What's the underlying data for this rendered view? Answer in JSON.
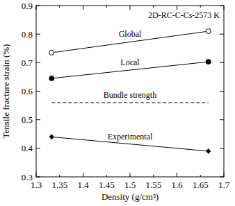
{
  "chart_data": {
    "type": "line",
    "annotation": "2D-RC-C-Cs-2573 K",
    "x_label": "Density (g/cm³)",
    "y_label": "Tensile fracture strain (%)",
    "xlim": [
      1.3,
      1.7
    ],
    "xticks": [
      1.3,
      1.35,
      1.4,
      1.45,
      1.5,
      1.55,
      1.6,
      1.65,
      1.7
    ],
    "ylim": [
      0.3,
      0.9
    ],
    "yticks": [
      0.3,
      0.4,
      0.5,
      0.6,
      0.7,
      0.8,
      0.9
    ],
    "grid": false,
    "series": [
      {
        "name": "Global",
        "color": "#000000",
        "marker": "open-circle",
        "line_style": "solid",
        "x": [
          1.333,
          1.667
        ],
        "values": [
          0.735,
          0.81
        ]
      },
      {
        "name": "Local",
        "color": "#000000",
        "marker": "circle",
        "line_style": "solid",
        "x": [
          1.333,
          1.667
        ],
        "values": [
          0.645,
          0.703
        ]
      },
      {
        "name": "Bundle strength",
        "color": "#000000",
        "marker": "none",
        "line_style": "dashed",
        "x": [
          1.333,
          1.667
        ],
        "values": [
          0.56,
          0.56
        ]
      },
      {
        "name": "Experimental",
        "color": "#000000",
        "marker": "diamond",
        "line_style": "solid",
        "x": [
          1.333,
          1.667
        ],
        "values": [
          0.44,
          0.39
        ]
      }
    ]
  }
}
